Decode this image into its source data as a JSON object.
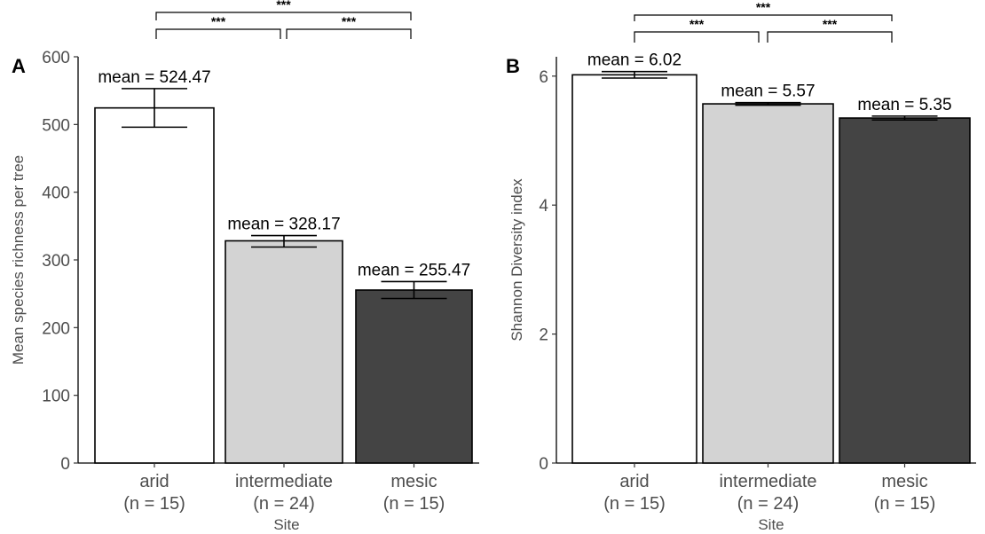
{
  "chart_data": [
    {
      "type": "bar",
      "panel_label": "A",
      "xlabel": "Site",
      "ylabel": "Mean species richness per tree",
      "ylim": [
        0,
        600
      ],
      "yticks": [
        0,
        100,
        200,
        300,
        400,
        500,
        600
      ],
      "categories": [
        {
          "name": "arid",
          "n": "(n = 15)",
          "mean": 524.47,
          "mean_label": "mean = 524.47",
          "err_low": 496,
          "err_high": 553,
          "color": "#ffffff"
        },
        {
          "name": "intermediate",
          "n": "(n = 24)",
          "mean": 328.17,
          "mean_label": "mean = 328.17",
          "err_low": 319,
          "err_high": 336,
          "color": "#d3d3d3"
        },
        {
          "name": "mesic",
          "n": "(n = 15)",
          "mean": 255.47,
          "mean_label": "mean = 255.47",
          "err_low": 243,
          "err_high": 268,
          "color": "#444444"
        }
      ],
      "significance": [
        {
          "from": 0,
          "to": 2,
          "label": "***"
        },
        {
          "from": 0,
          "to": 1,
          "label": "***"
        },
        {
          "from": 1,
          "to": 2,
          "label": "***"
        }
      ],
      "grid": false
    },
    {
      "type": "bar",
      "panel_label": "B",
      "xlabel": "Site",
      "ylabel": "Shannon Diversity index",
      "ylim": [
        0,
        6.3
      ],
      "yticks": [
        0,
        2,
        4,
        6
      ],
      "categories": [
        {
          "name": "arid",
          "n": "(n = 15)",
          "mean": 6.02,
          "mean_label": "mean = 6.02",
          "err_low": 5.97,
          "err_high": 6.07,
          "color": "#ffffff"
        },
        {
          "name": "intermediate",
          "n": "(n = 24)",
          "mean": 5.57,
          "mean_label": "mean = 5.57",
          "err_low": 5.55,
          "err_high": 5.59,
          "color": "#d3d3d3"
        },
        {
          "name": "mesic",
          "n": "(n = 15)",
          "mean": 5.35,
          "mean_label": "mean = 5.35",
          "err_low": 5.32,
          "err_high": 5.38,
          "color": "#444444"
        }
      ],
      "significance": [
        {
          "from": 0,
          "to": 2,
          "label": "***"
        },
        {
          "from": 0,
          "to": 1,
          "label": "***"
        },
        {
          "from": 1,
          "to": 2,
          "label": "***"
        }
      ],
      "grid": false
    }
  ]
}
